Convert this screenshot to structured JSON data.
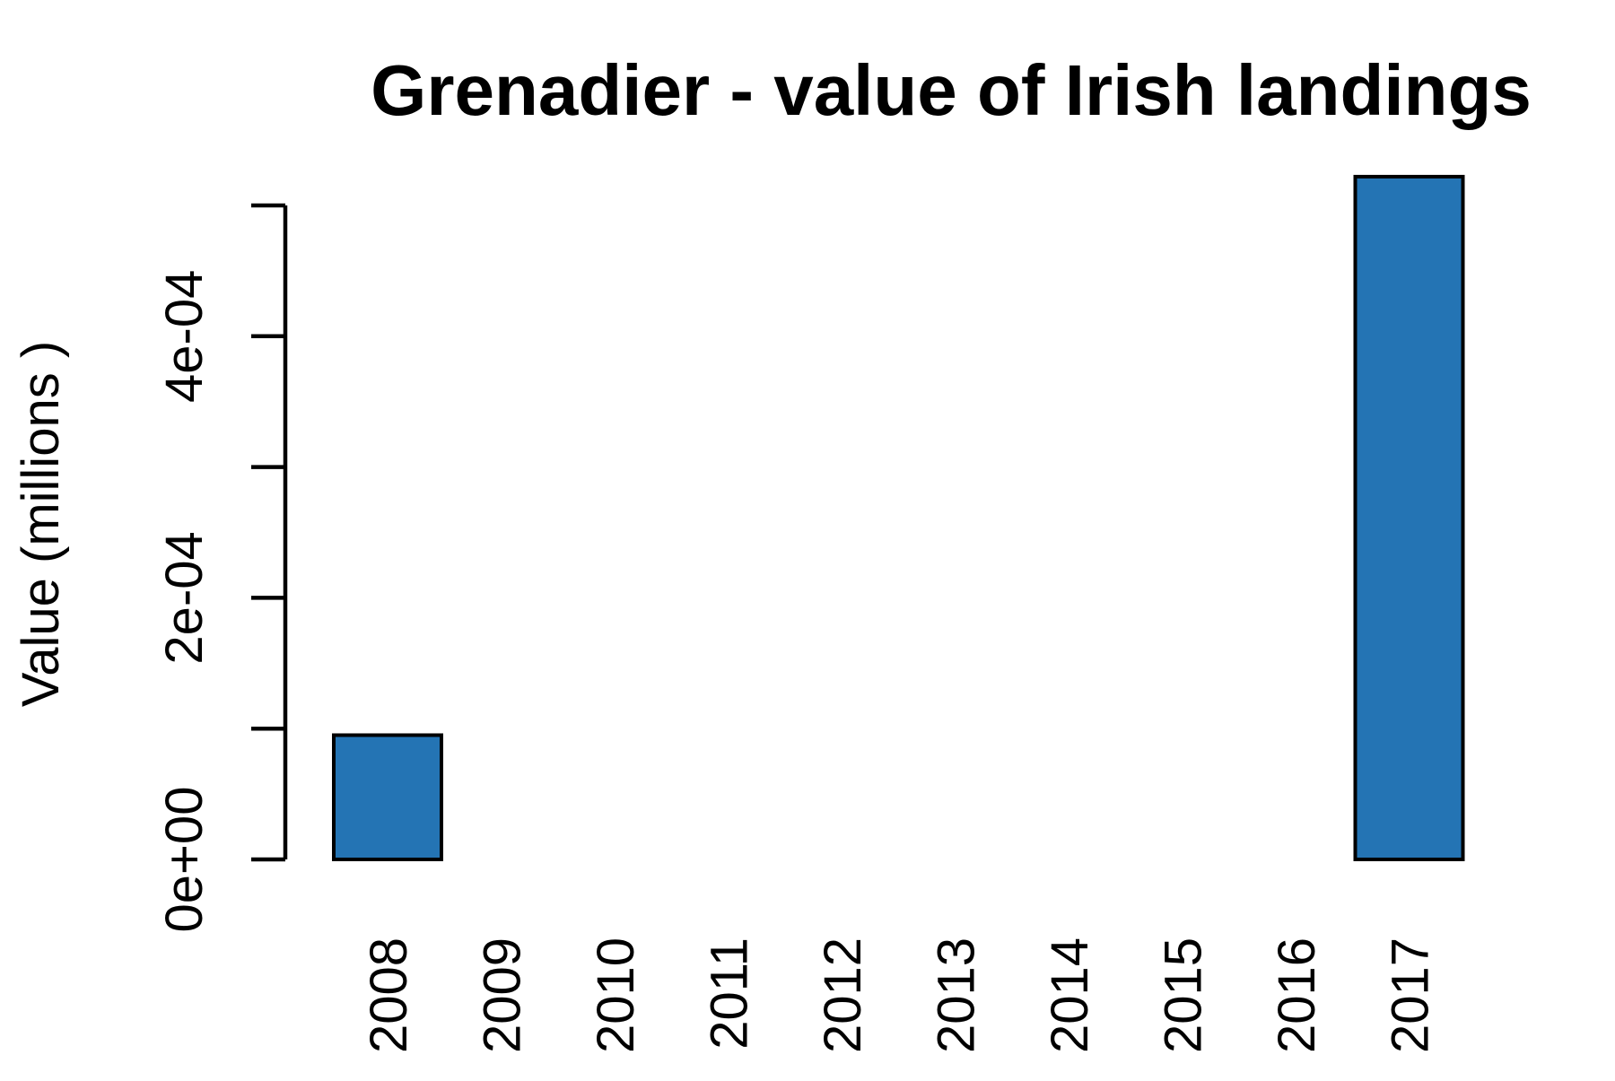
{
  "chart_data": {
    "type": "bar",
    "title": "Grenadier - value of Irish landings",
    "xlabel": "",
    "ylabel": "Value (millions )",
    "categories": [
      "2008",
      "2009",
      "2010",
      "2011",
      "2012",
      "2013",
      "2014",
      "2015",
      "2016",
      "2017"
    ],
    "values": [
      9.5e-05,
      0,
      0,
      0,
      0,
      0,
      0,
      0,
      0,
      0.000522
    ],
    "ylim": [
      0,
      0.0005
    ],
    "yticks": [
      0,
      0.0001,
      0.0002,
      0.0003,
      0.0004,
      0.0005
    ],
    "ytick_labels": [
      "0e+00",
      "",
      "2e-04",
      "",
      "4e-04",
      ""
    ],
    "bar_color": "#2474B4",
    "grid": false,
    "legend": "none"
  }
}
